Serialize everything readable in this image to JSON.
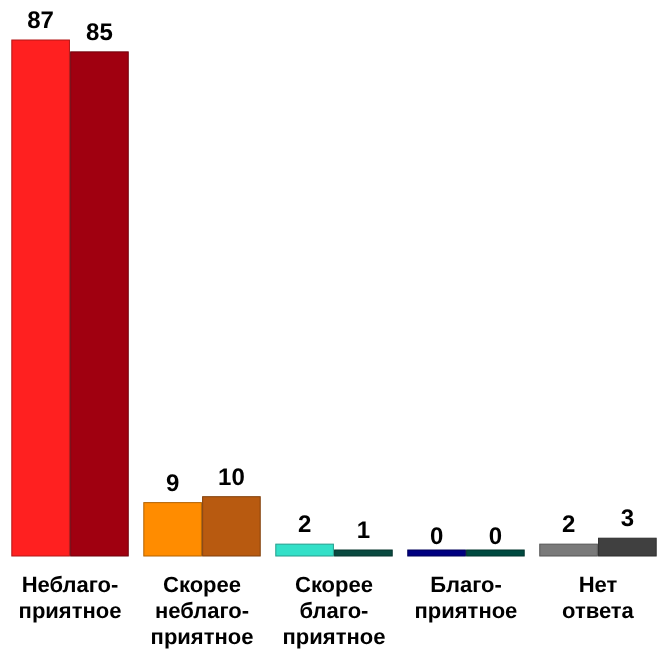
{
  "chart_data": {
    "type": "bar",
    "categories": [
      "Неблаго-\nприятное",
      "Скорее\nнеблаго-\nприятное",
      "Скорее\nблаго-\nприятное",
      "Благо-\nприятное",
      "Нет\nответа"
    ],
    "series": [
      {
        "values": [
          87,
          9,
          2,
          0,
          2
        ],
        "colors": [
          "#ff2020",
          "#ff8c00",
          "#33e0c8",
          "#000080",
          "#7a7a7a"
        ]
      },
      {
        "values": [
          85,
          10,
          1,
          0,
          3
        ],
        "colors": [
          "#a00010",
          "#b85a10",
          "#0a4a40",
          "#004a40",
          "#404040"
        ]
      }
    ],
    "data_labels": true
  }
}
